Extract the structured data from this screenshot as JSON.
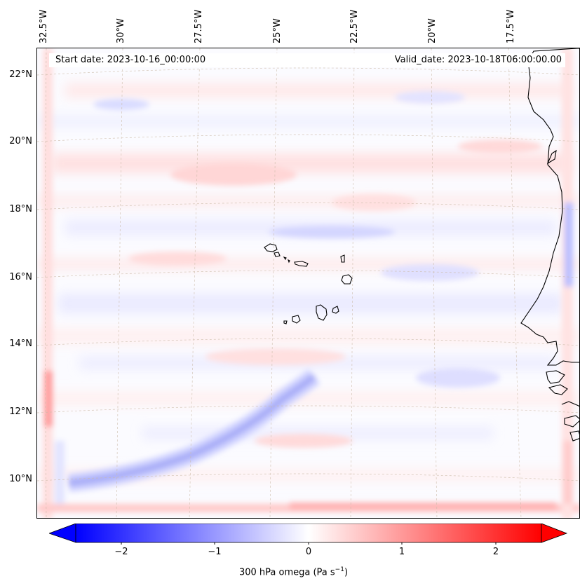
{
  "map": {
    "start_date": "Start date: 2023-10-16_00:00:00",
    "valid_date": "Valid_date: 2023-10-18T06:00:00.00",
    "lon_labels": [
      "32.5°W",
      "30°W",
      "27.5°W",
      "25°W",
      "22.5°W",
      "20°W",
      "17.5°W"
    ],
    "lat_labels": [
      "22°N",
      "20°N",
      "18°N",
      "16°N",
      "14°N",
      "12°N",
      "10°N"
    ],
    "field": "300 hPa omega",
    "colormap": "bwr",
    "colors": {
      "negative": "#0000ff",
      "zero": "#ffffff",
      "positive": "#ff0000",
      "coast": "#000000",
      "grid": "#c8b4a0"
    }
  },
  "colorbar": {
    "ticks": [
      "−2",
      "−1",
      "0",
      "1",
      "2"
    ],
    "range": [
      -2.75,
      2.75
    ],
    "label_main": "300 hPa omega (Pa s",
    "label_exp": "−1",
    "label_end": ")"
  }
}
